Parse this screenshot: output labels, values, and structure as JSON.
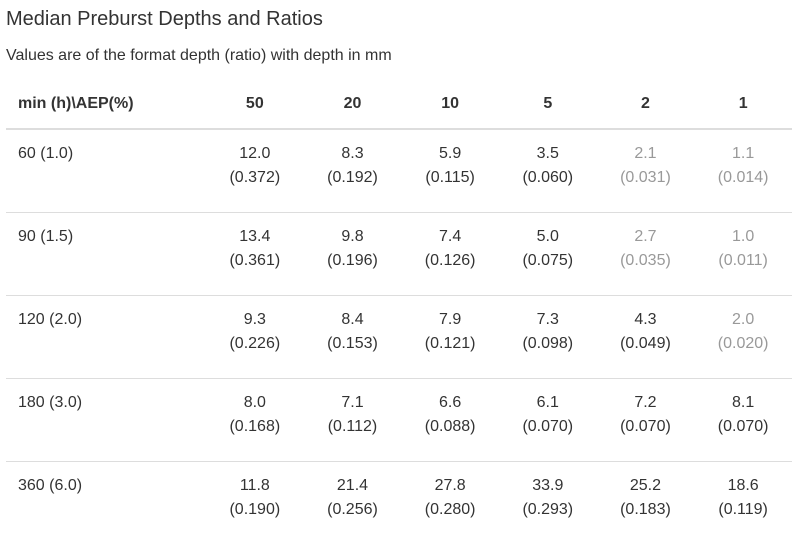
{
  "title": "Median Preburst Depths and Ratios",
  "subtitle": "Values are of the format depth (ratio) with depth in mm",
  "table": {
    "header": [
      "min (h)\\AEP(%)",
      "50",
      "20",
      "10",
      "5",
      "2",
      "1"
    ],
    "rows": [
      {
        "label": "60 (1.0)",
        "cells": [
          {
            "depth": "12.0",
            "ratio": "(0.372)",
            "muted": false
          },
          {
            "depth": "8.3",
            "ratio": "(0.192)",
            "muted": false
          },
          {
            "depth": "5.9",
            "ratio": "(0.115)",
            "muted": false
          },
          {
            "depth": "3.5",
            "ratio": "(0.060)",
            "muted": false
          },
          {
            "depth": "2.1",
            "ratio": "(0.031)",
            "muted": true
          },
          {
            "depth": "1.1",
            "ratio": "(0.014)",
            "muted": true
          }
        ]
      },
      {
        "label": "90 (1.5)",
        "cells": [
          {
            "depth": "13.4",
            "ratio": "(0.361)",
            "muted": false
          },
          {
            "depth": "9.8",
            "ratio": "(0.196)",
            "muted": false
          },
          {
            "depth": "7.4",
            "ratio": "(0.126)",
            "muted": false
          },
          {
            "depth": "5.0",
            "ratio": "(0.075)",
            "muted": false
          },
          {
            "depth": "2.7",
            "ratio": "(0.035)",
            "muted": true
          },
          {
            "depth": "1.0",
            "ratio": "(0.011)",
            "muted": true
          }
        ]
      },
      {
        "label": "120 (2.0)",
        "cells": [
          {
            "depth": "9.3",
            "ratio": "(0.226)",
            "muted": false
          },
          {
            "depth": "8.4",
            "ratio": "(0.153)",
            "muted": false
          },
          {
            "depth": "7.9",
            "ratio": "(0.121)",
            "muted": false
          },
          {
            "depth": "7.3",
            "ratio": "(0.098)",
            "muted": false
          },
          {
            "depth": "4.3",
            "ratio": "(0.049)",
            "muted": false
          },
          {
            "depth": "2.0",
            "ratio": "(0.020)",
            "muted": true
          }
        ]
      },
      {
        "label": "180 (3.0)",
        "cells": [
          {
            "depth": "8.0",
            "ratio": "(0.168)",
            "muted": false
          },
          {
            "depth": "7.1",
            "ratio": "(0.112)",
            "muted": false
          },
          {
            "depth": "6.6",
            "ratio": "(0.088)",
            "muted": false
          },
          {
            "depth": "6.1",
            "ratio": "(0.070)",
            "muted": false
          },
          {
            "depth": "7.2",
            "ratio": "(0.070)",
            "muted": false
          },
          {
            "depth": "8.1",
            "ratio": "(0.070)",
            "muted": false
          }
        ]
      },
      {
        "label": "360 (6.0)",
        "cells": [
          {
            "depth": "11.8",
            "ratio": "(0.190)",
            "muted": false
          },
          {
            "depth": "21.4",
            "ratio": "(0.256)",
            "muted": false
          },
          {
            "depth": "27.8",
            "ratio": "(0.280)",
            "muted": false
          },
          {
            "depth": "33.9",
            "ratio": "(0.293)",
            "muted": false
          },
          {
            "depth": "25.2",
            "ratio": "(0.183)",
            "muted": false
          },
          {
            "depth": "18.6",
            "ratio": "(0.119)",
            "muted": false
          }
        ]
      }
    ]
  },
  "colors": {
    "text": "#333333",
    "muted_text": "#999999",
    "divider": "#dddddd"
  }
}
